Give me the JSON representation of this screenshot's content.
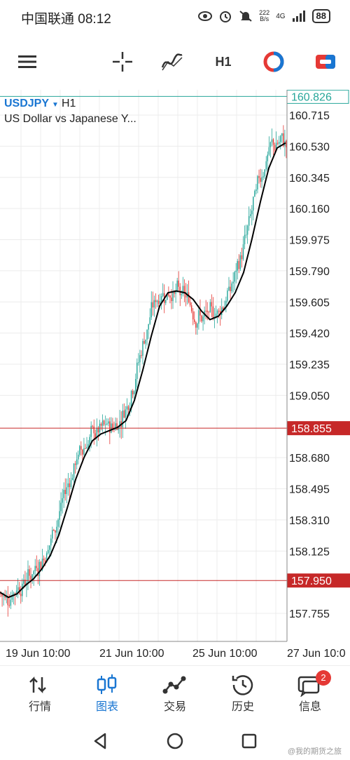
{
  "status_bar": {
    "carrier_time": "中国联通 08:12",
    "net_speed_value": "222",
    "net_speed_unit": "B/s",
    "network_type": "4G",
    "battery": "88",
    "icons": [
      "eye-icon",
      "alarm-icon",
      "mute-icon",
      "signal-icon"
    ]
  },
  "toolbar": {
    "timeframe": "H1",
    "icons": [
      "menu-icon",
      "crosshair-icon",
      "indicators-icon",
      "one-click-trading-icon",
      "trade-panel-icon"
    ]
  },
  "chart": {
    "symbol": "USDJPY",
    "timeframe": "H1",
    "description": "US Dollar vs Japanese Y...",
    "colors": {
      "bull": "#26a69a",
      "bear": "#e53935",
      "ma": "#000000",
      "level": "#c62828",
      "current": "#26a69a"
    }
  },
  "chart_data": {
    "type": "line",
    "title": "",
    "xlabel": "",
    "ylabel": "",
    "ylim": [
      157.64,
      160.85
    ],
    "price_ticks": [
      "160.715",
      "160.530",
      "160.345",
      "160.160",
      "159.975",
      "159.790",
      "159.605",
      "159.420",
      "159.235",
      "159.050",
      "158.680",
      "158.495",
      "158.310",
      "158.125",
      "157.755"
    ],
    "time_ticks": [
      "19 Jun 10:00",
      "21 Jun 10:00",
      "25 Jun 10:00",
      "27 Jun 10:0"
    ],
    "current_price": "160.826",
    "levels": [
      "158.855",
      "157.950"
    ],
    "series": [
      {
        "values": [
          157.88,
          157.85,
          157.87,
          157.92,
          157.96,
          158.02,
          158.1,
          158.22,
          158.38,
          158.55,
          158.68,
          158.78,
          158.82,
          158.84,
          158.86,
          158.9,
          159.02,
          159.2,
          159.4,
          159.58,
          159.66,
          159.67,
          159.66,
          159.62,
          159.55,
          159.5,
          159.52,
          159.58,
          159.66,
          159.78,
          159.98,
          160.2,
          160.4,
          160.52,
          160.55
        ]
      }
    ]
  },
  "bottom_nav": {
    "items": [
      {
        "label": "行情",
        "icon": "quotes-arrows-icon"
      },
      {
        "label": "图表",
        "icon": "candlestick-chart-icon"
      },
      {
        "label": "交易",
        "icon": "trade-graph-icon"
      },
      {
        "label": "历史",
        "icon": "history-clock-icon"
      },
      {
        "label": "信息",
        "icon": "messages-icon"
      }
    ],
    "messages_badge": "2"
  },
  "system_nav": {
    "icons": [
      "back-icon",
      "home-icon",
      "recents-icon"
    ]
  },
  "watermark": "@我的期货之旅"
}
